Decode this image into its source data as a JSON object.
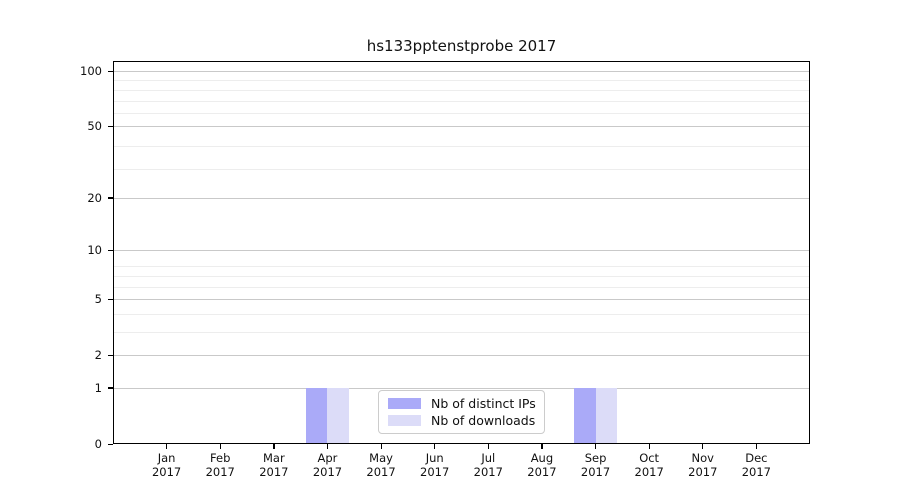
{
  "chart_data": {
    "type": "bar",
    "title": "hs133pptenstprobe 2017",
    "categories": [
      "Jan",
      "Feb",
      "Mar",
      "Apr",
      "May",
      "Jun",
      "Jul",
      "Aug",
      "Sep",
      "Oct",
      "Nov",
      "Dec"
    ],
    "year": "2017",
    "series": [
      {
        "name": "Nb of distinct IPs",
        "color": "#aaaaf8",
        "values": [
          0,
          0,
          0,
          1,
          0,
          0,
          0,
          0,
          1,
          0,
          0,
          0
        ]
      },
      {
        "name": "Nb of downloads",
        "color": "#dcdcf8",
        "values": [
          0,
          0,
          0,
          1,
          0,
          0,
          0,
          0,
          1,
          0,
          0,
          0
        ]
      }
    ],
    "yscale": "log(1+x)",
    "y_major_ticks": [
      0,
      1,
      2,
      5,
      10,
      20,
      50,
      100
    ],
    "y_minor_gridlines_1plus": [
      4,
      5,
      7,
      8,
      9,
      30,
      40,
      60,
      70,
      80,
      90
    ],
    "ylim": [
      0,
      112
    ],
    "grid": true,
    "legend_position": "lower center"
  }
}
